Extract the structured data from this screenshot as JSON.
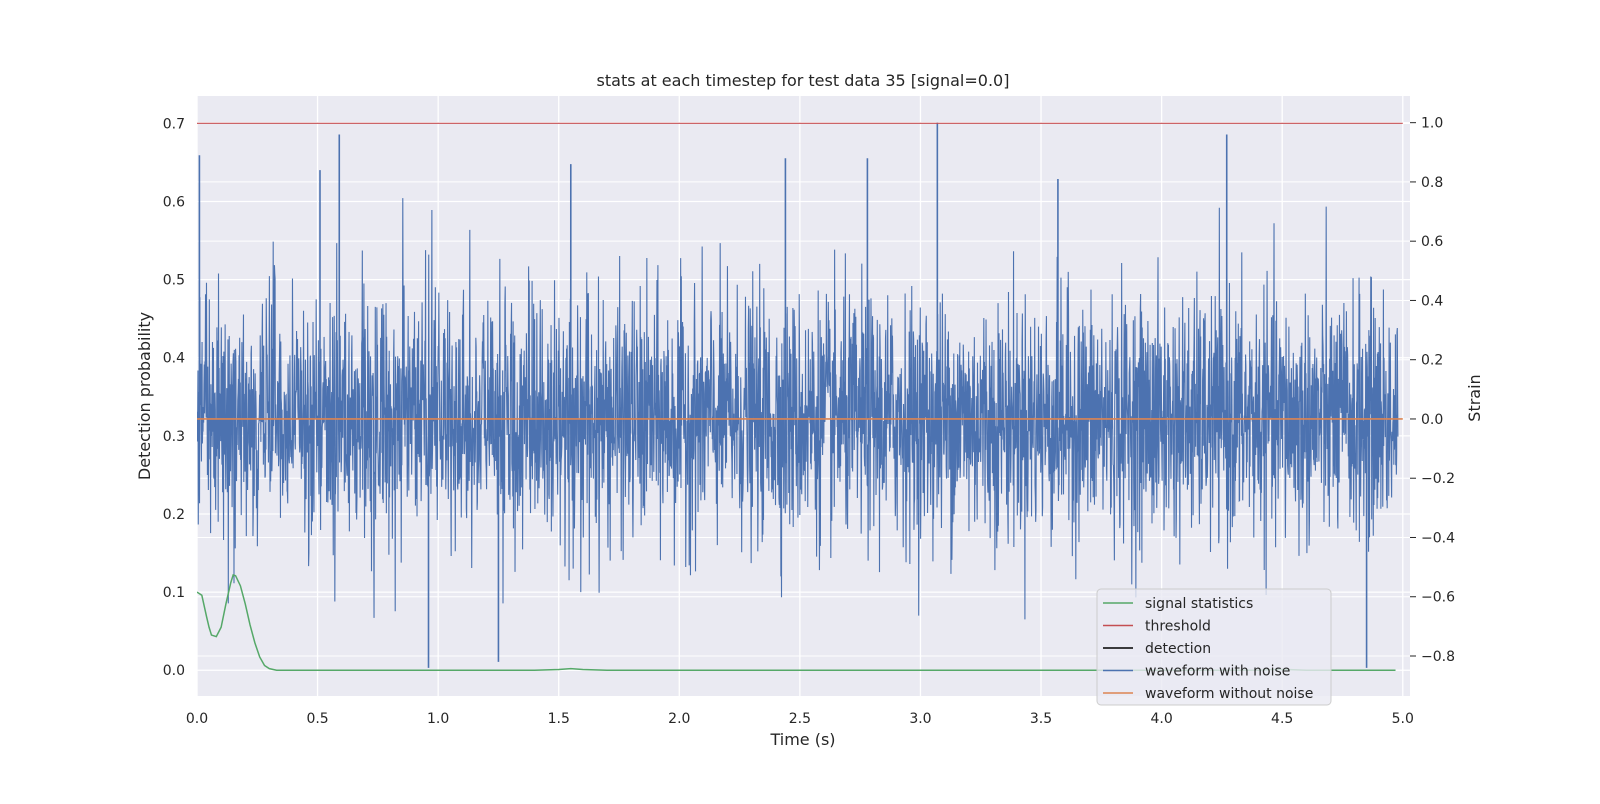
{
  "chart_data": {
    "type": "line",
    "title": "stats at each timestep for test data 35 [signal=0.0]",
    "xlabel": "Time (s)",
    "ylabel": "Detection probability",
    "y2label": "Strain",
    "xlim": [
      0.0,
      5.03
    ],
    "ylim": [
      -0.033,
      0.735
    ],
    "y2lim": [
      -0.935,
      1.09
    ],
    "x_ticks": [
      "0.0",
      "0.5",
      "1.0",
      "1.5",
      "2.0",
      "2.5",
      "3.0",
      "3.5",
      "4.0",
      "4.5",
      "5.0"
    ],
    "y_ticks": [
      "0.0",
      "0.1",
      "0.2",
      "0.3",
      "0.4",
      "0.5",
      "0.6",
      "0.7"
    ],
    "y2_ticks": [
      "−0.8",
      "−0.6",
      "−0.4",
      "−0.2",
      "0.0",
      "0.2",
      "0.4",
      "0.6",
      "0.8",
      "1.0"
    ],
    "y2_tick_values": [
      -0.8,
      -0.6,
      -0.4,
      -0.2,
      0.0,
      0.2,
      0.4,
      0.6,
      0.8,
      1.0
    ],
    "grid": true,
    "legend_position": "lower-right",
    "series": [
      {
        "name": "signal statistics",
        "color": "#55a868",
        "axis": "left",
        "x": [
          0.0,
          0.02,
          0.04,
          0.05,
          0.06,
          0.08,
          0.1,
          0.12,
          0.14,
          0.15,
          0.16,
          0.18,
          0.2,
          0.22,
          0.24,
          0.26,
          0.28,
          0.3,
          0.33,
          0.4,
          0.6,
          1.0,
          1.4,
          1.5,
          1.55,
          1.6,
          1.7,
          2.0,
          3.0,
          4.0,
          4.4,
          4.47,
          4.52,
          4.6,
          4.97
        ],
        "y": [
          0.1,
          0.096,
          0.068,
          0.055,
          0.045,
          0.043,
          0.055,
          0.085,
          0.112,
          0.122,
          0.121,
          0.108,
          0.085,
          0.058,
          0.035,
          0.017,
          0.006,
          0.002,
          0.0,
          0.0,
          0.0,
          0.0,
          0.0,
          0.001,
          0.002,
          0.001,
          0.0,
          0.0,
          0.0,
          0.0,
          0.0,
          0.001,
          0.001,
          0.0,
          0.0
        ]
      },
      {
        "name": "threshold",
        "color": "#c44e52",
        "axis": "left",
        "x": [
          0.0,
          5.0
        ],
        "y": [
          0.7,
          0.7
        ]
      },
      {
        "name": "detection",
        "color": "#000000",
        "axis": "left",
        "x": [],
        "y": []
      },
      {
        "name": "waveform with noise",
        "color": "#4c72b0",
        "axis": "right",
        "x_range": [
          0.0,
          4.98
        ],
        "approx_std": 0.2,
        "approx_min": -0.84,
        "approx_max": 1.0,
        "peaks": [
          {
            "x": 0.01,
            "y": 0.89
          },
          {
            "x": 0.51,
            "y": 0.84
          },
          {
            "x": 0.59,
            "y": 0.96
          },
          {
            "x": 0.96,
            "y": -0.84
          },
          {
            "x": 1.25,
            "y": -0.82
          },
          {
            "x": 1.55,
            "y": 0.86
          },
          {
            "x": 2.44,
            "y": 0.88
          },
          {
            "x": 2.78,
            "y": 0.88
          },
          {
            "x": 3.07,
            "y": 1.0
          },
          {
            "x": 3.57,
            "y": 0.81
          },
          {
            "x": 4.27,
            "y": 0.96
          },
          {
            "x": 4.85,
            "y": -0.84
          }
        ]
      },
      {
        "name": "waveform without noise",
        "color": "#dd8452",
        "axis": "right",
        "x": [
          0.0,
          5.0
        ],
        "y": [
          0.0,
          0.0
        ]
      }
    ]
  }
}
